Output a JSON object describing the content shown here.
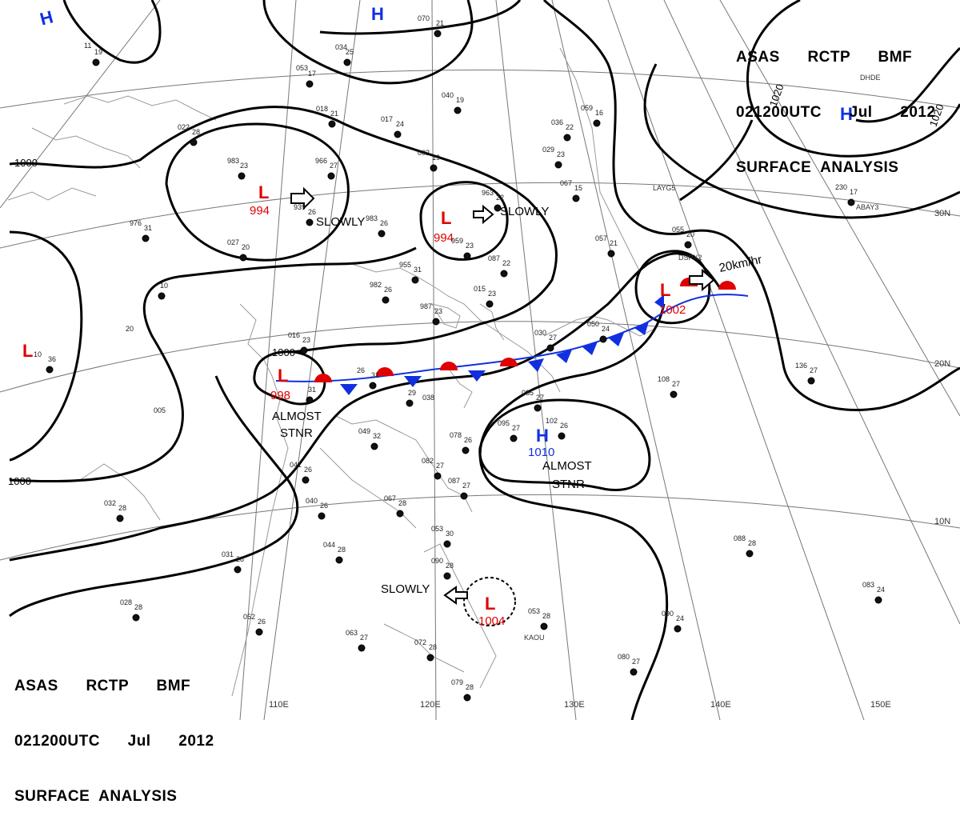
{
  "header_top": {
    "line1": "ASAS      RCTP      BMF",
    "line2": "021200UTC      Jul      2012",
    "line3": "SURFACE  ANALYSIS"
  },
  "header_bottom": {
    "line1": "ASAS      RCTP      BMF",
    "line2": "021200UTC      Jul      2012",
    "line3": "SURFACE  ANALYSIS"
  },
  "grid": {
    "longitudes": [
      "110E",
      "120E",
      "130E",
      "140E",
      "150E"
    ],
    "latitudes": [
      "30N",
      "20N",
      "10N"
    ]
  },
  "isobars": [
    "1000",
    "1000",
    "1000",
    "1020",
    "1020"
  ],
  "pressure_centers": [
    {
      "type": "L",
      "value": "994",
      "color": "#e00000"
    },
    {
      "type": "L",
      "value": "994",
      "color": "#e00000"
    },
    {
      "type": "L",
      "value": "998",
      "color": "#e00000"
    },
    {
      "type": "L",
      "value": "1002",
      "color": "#e00000"
    },
    {
      "type": "L",
      "value": "1004",
      "color": "#e00000"
    },
    {
      "type": "L",
      "value": "",
      "color": "#e00000"
    },
    {
      "type": "H",
      "value": "1010",
      "color": "#1030e0"
    },
    {
      "type": "H",
      "value": "",
      "color": "#1030e0"
    },
    {
      "type": "H",
      "value": "",
      "color": "#1030e0"
    },
    {
      "type": "H",
      "value": "",
      "color": "#1030e0"
    }
  ],
  "movement_labels": [
    "SLOWLY",
    "SLOWLY",
    "SLOWLY",
    "20km/hr",
    "ALMOST",
    "STNR",
    "ALMOST",
    "STNR"
  ],
  "station_labels": [
    "LAYG5",
    "ABAY3",
    "DHDE",
    "KAOU",
    "DSPX2"
  ],
  "station_values": [
    "19",
    "11",
    "17",
    "053",
    "25",
    "034",
    "21",
    "070",
    "21",
    "018",
    "24",
    "017",
    "19",
    "040",
    "28",
    "022",
    "23",
    "983",
    "27",
    "966",
    "19",
    "002",
    "22",
    "963",
    "26",
    "939",
    "26",
    "983",
    "23",
    "959",
    "31",
    "955",
    "26",
    "982",
    "20",
    "027",
    "31",
    "976",
    "22",
    "036",
    "23",
    "029",
    "15",
    "067",
    "16",
    "059",
    "21",
    "057",
    "20",
    "055",
    "10",
    "20",
    "23",
    "016",
    "31",
    "26",
    "31",
    "038",
    "29",
    "005",
    "32",
    "049",
    "26",
    "078",
    "27",
    "085",
    "27",
    "095",
    "26",
    "102",
    "27",
    "082",
    "27",
    "087",
    "26",
    "041",
    "26",
    "040",
    "28",
    "067",
    "28",
    "032",
    "28",
    "044",
    "28",
    "031",
    "30",
    "053",
    "28",
    "090",
    "26",
    "052",
    "27",
    "063",
    "28",
    "072",
    "28",
    "053",
    "28",
    "079",
    "28",
    "028",
    "27",
    "080",
    "24",
    "083",
    "28",
    "088",
    "27",
    "108",
    "27",
    "136",
    "17",
    "230",
    "24",
    "090",
    "36",
    "10",
    "22",
    "087",
    "23",
    "015",
    "23",
    "987",
    "24",
    "050",
    "27",
    "030"
  ],
  "colors": {
    "isobar": "#000000",
    "low": "#e00000",
    "high": "#1030e0",
    "cold_front": "#1030e0",
    "warm_front": "#e00000"
  }
}
